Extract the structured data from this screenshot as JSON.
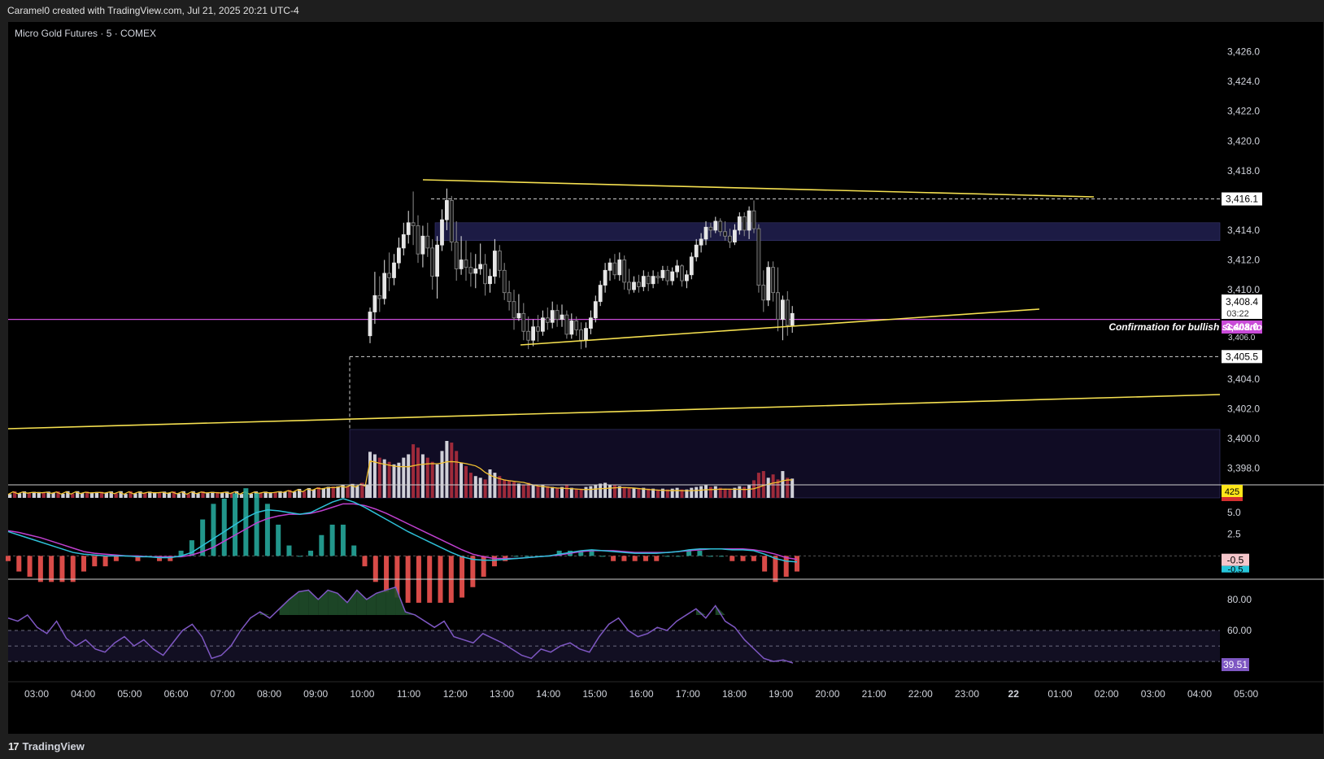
{
  "header": {
    "caption": "Caramel0 created with TradingView.com, Jul 21, 2025 20:21 UTC-4",
    "symbol_line": "Micro Gold Futures · 5 · COMEX"
  },
  "footer": {
    "brand": "TradingView",
    "logo_icon": "tradingview-logo-icon"
  },
  "colors": {
    "background": "#000000",
    "bull_candle": "#e6e6e6",
    "bear_candle": "#8c8c8c",
    "trendline": "#f5e050",
    "level_line": "#c94bd8",
    "zone": "#2b2a55",
    "volume_up": "#d0d0d8",
    "volume_down": "#9e2a3a",
    "volume_ma": "#f0c030",
    "macd_line": "#2ec0d8",
    "signal_line": "#c040d0",
    "rsi_line": "#7e57c2",
    "rsi_fill": "#1f4d2a"
  },
  "chart_data": {
    "type": "candlestick",
    "price_axis": {
      "ticks": [
        "3,426.0",
        "3,424.0",
        "3,422.0",
        "3,420.0",
        "3,418.0",
        "3,414.0",
        "3,412.0",
        "3,410.0",
        "3,404.0",
        "3,402.0",
        "3,400.0",
        "3,398.0"
      ],
      "ylim": [
        3396,
        3428
      ]
    },
    "time_axis": {
      "ticks": [
        "03:00",
        "04:00",
        "05:00",
        "06:00",
        "07:00",
        "08:00",
        "09:00",
        "10:00",
        "11:00",
        "12:00",
        "13:00",
        "14:00",
        "15:00",
        "16:00",
        "17:00",
        "18:00",
        "19:00",
        "20:00",
        "21:00",
        "22:00",
        "23:00",
        "22",
        "01:00",
        "02:00",
        "03:00",
        "04:00",
        "05:00"
      ]
    },
    "price_labels": {
      "last_price": "3,408.4",
      "countdown": "03:22",
      "level": "3,408.0",
      "dashed_high": "3,416.1",
      "dashed_low": "3,405.5",
      "partial_tick": "3,406.0"
    },
    "annotation": "Confirmation for bullish scenario",
    "levels": {
      "high": 3416.1,
      "low": 3405.5,
      "magenta": 3408.0
    },
    "zones": [
      {
        "from": 3413.3,
        "to": 3414.5
      },
      {
        "from": 3396.0,
        "to": 3400.6
      }
    ],
    "candles": [
      [
        3406.9,
        3408.8,
        3406.4,
        3408.5
      ],
      [
        3408.5,
        3411.2,
        3407.7,
        3409.6
      ],
      [
        3409.6,
        3410.9,
        3408.5,
        3409.4
      ],
      [
        3409.4,
        3412.0,
        3409.0,
        3411.1
      ],
      [
        3411.1,
        3412.5,
        3409.9,
        3410.8
      ],
      [
        3410.8,
        3412.4,
        3410.3,
        3411.8
      ],
      [
        3411.8,
        3413.5,
        3411.4,
        3412.8
      ],
      [
        3412.8,
        3414.5,
        3412.3,
        3413.7
      ],
      [
        3413.7,
        3415.3,
        3413.1,
        3414.5
      ],
      [
        3414.5,
        3416.6,
        3413.0,
        3414.3
      ],
      [
        3414.3,
        3415.0,
        3411.8,
        3412.4
      ],
      [
        3412.4,
        3414.3,
        3411.5,
        3413.6
      ],
      [
        3413.6,
        3414.5,
        3412.2,
        3412.8
      ],
      [
        3412.8,
        3413.4,
        3410.0,
        3410.9
      ],
      [
        3410.9,
        3413.6,
        3409.4,
        3413.0
      ],
      [
        3413.0,
        3415.4,
        3412.6,
        3414.7
      ],
      [
        3414.7,
        3416.8,
        3414.0,
        3416.0
      ],
      [
        3416.0,
        3416.3,
        3412.6,
        3413.2
      ],
      [
        3413.2,
        3414.6,
        3410.6,
        3411.4
      ],
      [
        3411.4,
        3413.6,
        3411.0,
        3412.0
      ],
      [
        3412.0,
        3413.3,
        3410.6,
        3411.5
      ],
      [
        3411.5,
        3412.5,
        3410.2,
        3411.1
      ],
      [
        3411.1,
        3412.4,
        3410.1,
        3411.4
      ],
      [
        3411.4,
        3413.1,
        3411.0,
        3411.7
      ],
      [
        3411.7,
        3412.4,
        3409.6,
        3410.4
      ],
      [
        3410.4,
        3411.4,
        3409.8,
        3410.9
      ],
      [
        3410.9,
        3413.4,
        3410.4,
        3412.6
      ],
      [
        3412.6,
        3413.0,
        3410.8,
        3411.3
      ],
      [
        3411.3,
        3411.8,
        3409.3,
        3409.8
      ],
      [
        3409.8,
        3410.6,
        3408.6,
        3409.2
      ],
      [
        3409.2,
        3410.0,
        3407.3,
        3408.1
      ],
      [
        3408.1,
        3409.7,
        3407.9,
        3408.4
      ],
      [
        3408.4,
        3409.1,
        3406.6,
        3407.2
      ],
      [
        3407.2,
        3408.2,
        3406.0,
        3406.6
      ],
      [
        3406.6,
        3408.0,
        3406.2,
        3407.5
      ],
      [
        3407.5,
        3408.3,
        3406.5,
        3407.2
      ],
      [
        3407.2,
        3408.6,
        3406.9,
        3408.1
      ],
      [
        3408.1,
        3408.8,
        3407.3,
        3407.8
      ],
      [
        3407.8,
        3409.2,
        3407.4,
        3408.6
      ],
      [
        3408.6,
        3409.0,
        3407.5,
        3408.0
      ],
      [
        3408.0,
        3409.0,
        3407.5,
        3408.3
      ],
      [
        3408.3,
        3408.6,
        3406.7,
        3407.0
      ],
      [
        3407.0,
        3408.4,
        3406.7,
        3407.9
      ],
      [
        3407.9,
        3408.2,
        3406.9,
        3407.3
      ],
      [
        3407.3,
        3407.8,
        3406.0,
        3406.6
      ],
      [
        3406.6,
        3407.8,
        3406.1,
        3407.4
      ],
      [
        3407.4,
        3408.6,
        3407.0,
        3408.1
      ],
      [
        3408.1,
        3409.6,
        3407.8,
        3409.2
      ],
      [
        3409.2,
        3410.6,
        3408.9,
        3410.3
      ],
      [
        3410.3,
        3411.8,
        3409.8,
        3411.3
      ],
      [
        3411.3,
        3412.1,
        3410.6,
        3411.8
      ],
      [
        3411.8,
        3412.4,
        3410.7,
        3411.0
      ],
      [
        3411.0,
        3412.5,
        3410.6,
        3412.0
      ],
      [
        3412.0,
        3412.3,
        3410.0,
        3410.5
      ],
      [
        3410.5,
        3411.4,
        3409.7,
        3410.0
      ],
      [
        3410.0,
        3410.9,
        3409.8,
        3410.5
      ],
      [
        3410.5,
        3411.0,
        3409.8,
        3410.2
      ],
      [
        3410.2,
        3411.3,
        3409.9,
        3410.9
      ],
      [
        3410.9,
        3411.2,
        3409.9,
        3410.4
      ],
      [
        3410.4,
        3411.3,
        3410.1,
        3410.9
      ],
      [
        3410.9,
        3411.2,
        3410.4,
        3410.8
      ],
      [
        3410.8,
        3411.6,
        3410.6,
        3411.3
      ],
      [
        3411.3,
        3411.6,
        3410.3,
        3410.6
      ],
      [
        3410.6,
        3411.5,
        3410.3,
        3411.2
      ],
      [
        3411.2,
        3412.0,
        3410.8,
        3411.6
      ],
      [
        3411.6,
        3411.7,
        3410.2,
        3410.6
      ],
      [
        3410.6,
        3411.3,
        3410.1,
        3411.0
      ],
      [
        3411.0,
        3412.5,
        3410.7,
        3412.2
      ],
      [
        3412.2,
        3413.4,
        3411.9,
        3413.0
      ],
      [
        3413.0,
        3413.8,
        3412.5,
        3413.4
      ],
      [
        3413.4,
        3414.6,
        3413.0,
        3414.2
      ],
      [
        3414.2,
        3414.5,
        3413.5,
        3414.0
      ],
      [
        3414.0,
        3414.9,
        3413.8,
        3414.6
      ],
      [
        3414.6,
        3414.8,
        3413.6,
        3413.9
      ],
      [
        3413.9,
        3414.6,
        3413.3,
        3413.6
      ],
      [
        3413.6,
        3414.1,
        3412.8,
        3413.2
      ],
      [
        3413.2,
        3414.4,
        3413.0,
        3414.0
      ],
      [
        3414.0,
        3415.2,
        3413.7,
        3414.9
      ],
      [
        3414.9,
        3415.2,
        3413.6,
        3414.0
      ],
      [
        3414.0,
        3415.6,
        3413.4,
        3415.3
      ],
      [
        3415.3,
        3416.0,
        3413.8,
        3414.1
      ],
      [
        3414.1,
        3414.4,
        3409.8,
        3410.3
      ],
      [
        3410.3,
        3411.3,
        3408.5,
        3409.3
      ],
      [
        3409.3,
        3411.9,
        3408.9,
        3411.5
      ],
      [
        3411.5,
        3411.9,
        3409.2,
        3409.8
      ],
      [
        3409.8,
        3411.5,
        3407.2,
        3408.0
      ],
      [
        3408.0,
        3409.6,
        3406.6,
        3409.3
      ],
      [
        3409.3,
        3409.9,
        3406.9,
        3407.6
      ],
      [
        3407.6,
        3408.9,
        3407.1,
        3408.4
      ]
    ],
    "volume": {
      "ma_label": "425",
      "values": [
        550,
        520,
        480,
        460,
        430,
        400,
        420,
        480,
        520,
        640,
        600,
        520,
        480,
        430,
        400,
        560,
        680,
        660,
        560,
        420,
        380,
        300,
        260,
        240,
        220,
        340,
        300,
        260,
        220,
        210,
        190,
        170,
        160,
        180,
        150,
        140,
        160,
        140,
        130,
        120,
        130,
        150,
        120,
        110,
        110,
        130,
        140,
        160,
        170,
        180,
        160,
        150,
        140,
        130,
        120,
        120,
        110,
        120,
        110,
        110,
        100,
        110,
        100,
        110,
        120,
        100,
        100,
        120,
        130,
        140,
        150,
        130,
        140,
        120,
        110,
        110,
        120,
        140,
        130,
        150,
        210,
        300,
        320,
        240,
        280,
        220,
        320,
        240,
        230
      ]
    },
    "macd": {
      "ticks": [
        "5.0",
        "2.5"
      ],
      "labels": [
        "-0.5",
        "-0.5"
      ],
      "ylim": [
        -2.5,
        8.0
      ],
      "macd_values": [
        2.8,
        2.4,
        2.0,
        1.6,
        1.2,
        0.8,
        0.4,
        0.2,
        0.1,
        0.0,
        0.0,
        0.0,
        -0.1,
        -0.1,
        -0.2,
        -0.2,
        0.0,
        0.4,
        1.2,
        2.0,
        2.8,
        3.6,
        4.4,
        5.0,
        5.3,
        5.2,
        5.0,
        4.8,
        5.0,
        5.6,
        6.2,
        6.6,
        6.2,
        5.6,
        4.9,
        4.2,
        3.5,
        2.8,
        2.2,
        1.6,
        1.0,
        0.4,
        -0.1,
        -0.4,
        -0.5,
        -0.5,
        -0.4,
        -0.3,
        -0.2,
        -0.1,
        0.0,
        0.2,
        0.4,
        0.6,
        0.7,
        0.6,
        0.5,
        0.4,
        0.3,
        0.3,
        0.3,
        0.4,
        0.5,
        0.7,
        0.8,
        0.8,
        0.8,
        0.7,
        0.7,
        0.6,
        0.2,
        -0.3,
        -0.6,
        -0.7
      ],
      "signal_values": [
        2.9,
        2.7,
        2.4,
        2.1,
        1.7,
        1.3,
        0.9,
        0.5,
        0.3,
        0.2,
        0.1,
        0.0,
        0.0,
        -0.1,
        -0.1,
        -0.1,
        -0.1,
        0.1,
        0.5,
        1.0,
        1.7,
        2.4,
        3.1,
        3.8,
        4.3,
        4.6,
        4.8,
        4.8,
        4.9,
        5.2,
        5.6,
        6.0,
        6.0,
        5.8,
        5.4,
        4.9,
        4.3,
        3.7,
        3.1,
        2.5,
        1.9,
        1.3,
        0.7,
        0.2,
        -0.1,
        -0.3,
        -0.3,
        -0.3,
        -0.2,
        -0.1,
        0.0,
        0.1,
        0.3,
        0.5,
        0.6,
        0.6,
        0.6,
        0.5,
        0.4,
        0.4,
        0.4,
        0.4,
        0.5,
        0.6,
        0.7,
        0.8,
        0.8,
        0.8,
        0.8,
        0.7,
        0.5,
        0.2,
        -0.2,
        -0.4
      ]
    },
    "rsi": {
      "ticks": [
        "80.00",
        "60.00"
      ],
      "value_label": "39.51",
      "ylim": [
        28,
        92
      ],
      "bands": [
        60,
        50,
        40
      ],
      "values": [
        68,
        66,
        70,
        62,
        58,
        66,
        55,
        50,
        54,
        48,
        46,
        52,
        56,
        50,
        54,
        48,
        44,
        52,
        60,
        64,
        56,
        42,
        44,
        50,
        60,
        68,
        72,
        68,
        74,
        80,
        85,
        86,
        80,
        86,
        84,
        78,
        86,
        80,
        84,
        86,
        88,
        72,
        70,
        66,
        62,
        66,
        56,
        54,
        52,
        58,
        55,
        52,
        48,
        44,
        42,
        48,
        46,
        50,
        52,
        48,
        46,
        56,
        64,
        68,
        60,
        56,
        58,
        62,
        60,
        66,
        70,
        74,
        68,
        76,
        66,
        62,
        54,
        48,
        42,
        40,
        41,
        39
      ]
    }
  }
}
